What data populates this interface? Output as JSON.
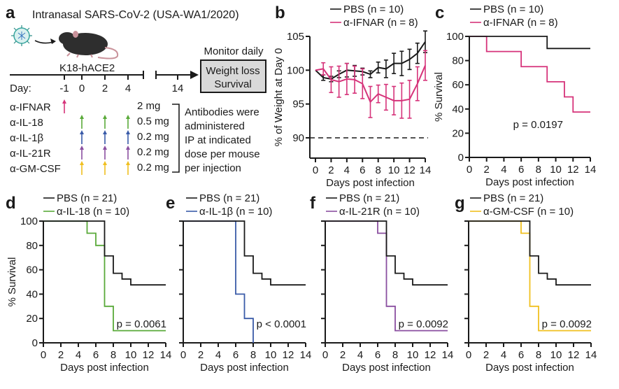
{
  "colors": {
    "pbs": "#1a1a1a",
    "ifnar": "#d6337a",
    "il18": "#5aaa3a",
    "il1b": "#3a5ba8",
    "il21r": "#8a4fa0",
    "gmcsf": "#f0c020"
  },
  "panel_a": {
    "letter": "a",
    "title": "Intranasal SARS-CoV-2 (USA-WA1/2020)",
    "mouse_label": "K18-hACE2",
    "day_label": "Day:",
    "days": [
      "-1",
      "0",
      "2",
      "4",
      "14"
    ],
    "monitor_label": "Monitor daily",
    "box_lines": [
      "Weight loss",
      "Survival"
    ],
    "treatments": [
      {
        "name": "α-IFNAR",
        "dose": "2 mg",
        "days": [
          "-1"
        ],
        "color_key": "ifnar"
      },
      {
        "name": "α-IL-18",
        "dose": "0.5 mg",
        "days": [
          "0",
          "2",
          "4"
        ],
        "color_key": "il18"
      },
      {
        "name": "α-IL-1β",
        "dose": "0.2 mg",
        "days": [
          "0",
          "2",
          "4"
        ],
        "color_key": "il1b"
      },
      {
        "name": "α-IL-21R",
        "dose": "0.2 mg",
        "days": [
          "0",
          "2",
          "4"
        ],
        "color_key": "il21r"
      },
      {
        "name": "α-GM-CSF",
        "dose": "0.2 mg",
        "days": [
          "0",
          "2",
          "4"
        ],
        "color_key": "gmcsf"
      }
    ],
    "note_lines": [
      "Antibodies were",
      "administered",
      "IP at indicated",
      "dose per mouse",
      "per injection"
    ]
  },
  "chart_data": [
    {
      "id": "b",
      "type": "line",
      "letter": "b",
      "xlabel": "Days post infection",
      "ylabel": "% of Weight at Day 0",
      "xlim": [
        0,
        14
      ],
      "ylim": [
        87,
        105
      ],
      "xticks": [
        0,
        2,
        4,
        6,
        8,
        10,
        12,
        14
      ],
      "yticks": [
        90,
        95,
        100,
        105
      ],
      "reference_line": 90,
      "legend": "top",
      "x": [
        0,
        1,
        2,
        3,
        4,
        5,
        6,
        7,
        8,
        9,
        10,
        11,
        12,
        13,
        14
      ],
      "series": [
        {
          "name": "PBS (n = 10)",
          "color_key": "pbs",
          "values": [
            100,
            98.9,
            98.7,
            99.4,
            100.0,
            99.9,
            99.8,
            99.4,
            100.4,
            100.2,
            101.0,
            101.0,
            101.6,
            102.5,
            104.2
          ],
          "err": [
            0,
            0.4,
            0.4,
            0.5,
            1.0,
            0.8,
            0.5,
            0.5,
            0.8,
            1.3,
            1.5,
            1.8,
            1.5,
            1.5,
            1.6
          ]
        },
        {
          "name": "α-IFNAR (n = 8)",
          "color_key": "ifnar",
          "values": [
            100,
            100.2,
            98.6,
            98.3,
            98.7,
            98.6,
            98.0,
            95.3,
            96.5,
            96.0,
            95.5,
            95.5,
            95.7,
            98.0,
            100.7
          ],
          "err": [
            0,
            0.9,
            1.9,
            2.3,
            2.3,
            2.0,
            2.2,
            2.3,
            1.3,
            1.9,
            2.1,
            2.6,
            2.8,
            2.5,
            2.2
          ]
        }
      ]
    },
    {
      "id": "c",
      "type": "line",
      "letter": "c",
      "step": true,
      "xlabel": "Days post infection",
      "ylabel": "% Survival",
      "xlim": [
        0,
        14
      ],
      "ylim": [
        0,
        100
      ],
      "xticks": [
        0,
        2,
        4,
        6,
        8,
        10,
        12,
        14
      ],
      "yticks": [
        0,
        20,
        40,
        60,
        80,
        100
      ],
      "annotation": "p = 0.0197",
      "legend": "top",
      "series": [
        {
          "name": "PBS (n = 10)",
          "color_key": "pbs",
          "points": [
            [
              0,
              100
            ],
            [
              9,
              100
            ],
            [
              9,
              90
            ],
            [
              14,
              90
            ]
          ]
        },
        {
          "name": "α-IFNAR (n = 8)",
          "color_key": "ifnar",
          "points": [
            [
              0,
              100
            ],
            [
              2,
              100
            ],
            [
              2,
              87.5
            ],
            [
              6,
              87.5
            ],
            [
              6,
              75
            ],
            [
              9,
              75
            ],
            [
              9,
              62.5
            ],
            [
              11,
              62.5
            ],
            [
              11,
              50
            ],
            [
              12,
              50
            ],
            [
              12,
              37.5
            ],
            [
              14,
              37.5
            ]
          ]
        }
      ]
    },
    {
      "id": "d",
      "type": "line",
      "letter": "d",
      "step": true,
      "xlabel": "Days post infection",
      "ylabel": "% Survival",
      "xlim": [
        0,
        14
      ],
      "ylim": [
        0,
        100
      ],
      "xticks": [
        0,
        2,
        4,
        6,
        8,
        10,
        12,
        14
      ],
      "yticks": [
        0,
        20,
        40,
        60,
        80,
        100
      ],
      "annotation": "p = 0.0061",
      "legend": "top",
      "series": [
        {
          "name": "PBS (n = 21)",
          "color_key": "pbs",
          "points": [
            [
              0,
              100
            ],
            [
              7,
              100
            ],
            [
              7,
              71.4
            ],
            [
              8,
              71.4
            ],
            [
              8,
              57.1
            ],
            [
              9,
              57.1
            ],
            [
              9,
              52.4
            ],
            [
              10,
              52.4
            ],
            [
              10,
              47.6
            ],
            [
              14,
              47.6
            ]
          ]
        },
        {
          "name": "α-IL-18 (n = 10)",
          "color_key": "il18",
          "points": [
            [
              0,
              100
            ],
            [
              5,
              100
            ],
            [
              5,
              90
            ],
            [
              6,
              90
            ],
            [
              6,
              80
            ],
            [
              7,
              80
            ],
            [
              7,
              30
            ],
            [
              8,
              30
            ],
            [
              8,
              10
            ],
            [
              14,
              10
            ]
          ]
        }
      ]
    },
    {
      "id": "e",
      "type": "line",
      "letter": "e",
      "step": true,
      "xlabel": "Days post infection",
      "ylabel": "",
      "xlim": [
        0,
        14
      ],
      "ylim": [
        0,
        100
      ],
      "xticks": [
        0,
        2,
        4,
        6,
        8,
        10,
        12,
        14
      ],
      "yticks": [
        0,
        20,
        40,
        60,
        80,
        100
      ],
      "annotation": "p < 0.0001",
      "legend": "top",
      "series": [
        {
          "name": "PBS (n = 21)",
          "color_key": "pbs",
          "points": [
            [
              0,
              100
            ],
            [
              7,
              100
            ],
            [
              7,
              71.4
            ],
            [
              8,
              71.4
            ],
            [
              8,
              57.1
            ],
            [
              9,
              57.1
            ],
            [
              9,
              52.4
            ],
            [
              10,
              52.4
            ],
            [
              10,
              47.6
            ],
            [
              14,
              47.6
            ]
          ]
        },
        {
          "name": "α-IL-1β (n = 10)",
          "color_key": "il1b",
          "points": [
            [
              0,
              100
            ],
            [
              6,
              100
            ],
            [
              6,
              40
            ],
            [
              7,
              40
            ],
            [
              7,
              20
            ],
            [
              8,
              20
            ],
            [
              8,
              0
            ]
          ]
        }
      ]
    },
    {
      "id": "f",
      "type": "line",
      "letter": "f",
      "step": true,
      "xlabel": "Days post infection",
      "ylabel": "",
      "xlim": [
        0,
        14
      ],
      "ylim": [
        0,
        100
      ],
      "xticks": [
        0,
        2,
        4,
        6,
        8,
        10,
        12,
        14
      ],
      "yticks": [
        0,
        20,
        40,
        60,
        80,
        100
      ],
      "annotation": "p = 0.0092",
      "legend": "top",
      "series": [
        {
          "name": "PBS (n = 21)",
          "color_key": "pbs",
          "points": [
            [
              0,
              100
            ],
            [
              7,
              100
            ],
            [
              7,
              71.4
            ],
            [
              8,
              71.4
            ],
            [
              8,
              57.1
            ],
            [
              9,
              57.1
            ],
            [
              9,
              52.4
            ],
            [
              10,
              52.4
            ],
            [
              10,
              47.6
            ],
            [
              14,
              47.6
            ]
          ]
        },
        {
          "name": "α-IL-21R (n = 10)",
          "color_key": "il21r",
          "points": [
            [
              0,
              100
            ],
            [
              6,
              100
            ],
            [
              6,
              90
            ],
            [
              7,
              90
            ],
            [
              7,
              30
            ],
            [
              8,
              30
            ],
            [
              8,
              10
            ],
            [
              14,
              10
            ]
          ]
        }
      ]
    },
    {
      "id": "g",
      "type": "line",
      "letter": "g",
      "step": true,
      "xlabel": "Days post infection",
      "ylabel": "",
      "xlim": [
        0,
        14
      ],
      "ylim": [
        0,
        100
      ],
      "xticks": [
        0,
        2,
        4,
        6,
        8,
        10,
        12,
        14
      ],
      "yticks": [
        0,
        20,
        40,
        60,
        80,
        100
      ],
      "annotation": "p = 0.0092",
      "legend": "top",
      "series": [
        {
          "name": "PBS (n = 21)",
          "color_key": "pbs",
          "points": [
            [
              0,
              100
            ],
            [
              7,
              100
            ],
            [
              7,
              71.4
            ],
            [
              8,
              71.4
            ],
            [
              8,
              57.1
            ],
            [
              9,
              57.1
            ],
            [
              9,
              52.4
            ],
            [
              10,
              52.4
            ],
            [
              10,
              47.6
            ],
            [
              14,
              47.6
            ]
          ]
        },
        {
          "name": "α-GM-CSF (n = 10)",
          "color_key": "gmcsf",
          "points": [
            [
              0,
              100
            ],
            [
              6,
              100
            ],
            [
              6,
              90
            ],
            [
              7,
              90
            ],
            [
              7,
              30
            ],
            [
              8,
              30
            ],
            [
              8,
              10
            ],
            [
              14,
              10
            ]
          ]
        }
      ]
    }
  ]
}
